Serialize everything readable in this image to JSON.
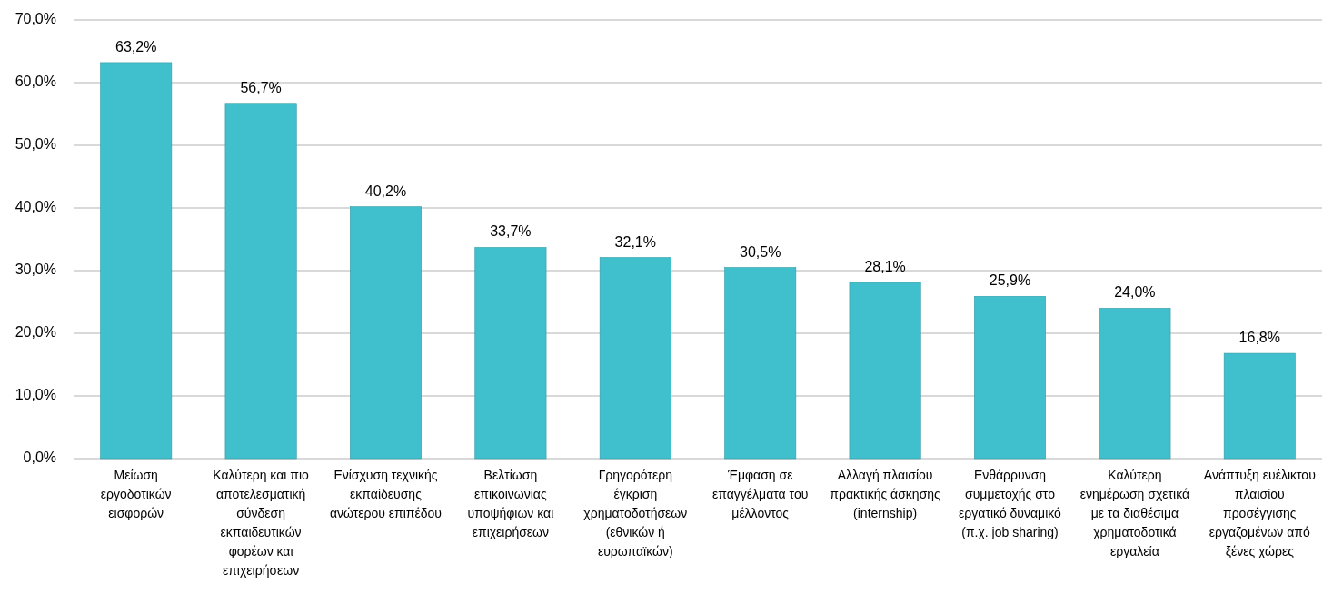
{
  "chart_data": {
    "type": "bar",
    "categories": [
      "Μείωση εργοδοτικών εισφορών",
      "Καλύτερη και πιο αποτελεσματική σύνδεση εκπαιδευτικών φορέων και επιχειρήσεων",
      "Ενίσχυση τεχνικής εκπαίδευσης ανώτερου επιπέδου",
      "Βελτίωση επικοινωνίας υποψήφιων και επιχειρήσεων",
      "Γρηγορότερη έγκριση χρηματοδοτήσεων (εθνικών ή ευρωπαϊκών)",
      "Έμφαση σε επαγγέλματα του μέλλοντος",
      "Αλλαγή πλαισίου πρακτικής άσκησης (internship)",
      "Ενθάρρυνση συμμετοχής στο εργατικό δυναμικό (π.χ. job sharing)",
      "Καλύτερη ενημέρωση σχετικά με τα διαθέσιμα χρηματοδοτικά εργαλεία",
      "Ανάπτυξη ευέλικτου πλαισίου προσέγγισης εργαζομένων από ξένες χώρες"
    ],
    "values": [
      63.2,
      56.7,
      40.2,
      33.7,
      32.1,
      30.5,
      28.1,
      25.9,
      24.0,
      16.8
    ],
    "value_labels": [
      "63,2%",
      "56,7%",
      "40,2%",
      "33,7%",
      "32,1%",
      "30,5%",
      "28,1%",
      "25,9%",
      "24,0%",
      "16,8%"
    ],
    "color": "#40bfcc",
    "ylim": [
      0,
      70
    ],
    "yticks": [
      {
        "value": 0,
        "label": "0,0%"
      },
      {
        "value": 10,
        "label": "10,0%"
      },
      {
        "value": 20,
        "label": "20,0%"
      },
      {
        "value": 30,
        "label": "30,0%"
      },
      {
        "value": 40,
        "label": "40,0%"
      },
      {
        "value": 50,
        "label": "50,0%"
      },
      {
        "value": 60,
        "label": "60,0%"
      },
      {
        "value": 70,
        "label": "70,0%"
      }
    ],
    "grid": true
  }
}
